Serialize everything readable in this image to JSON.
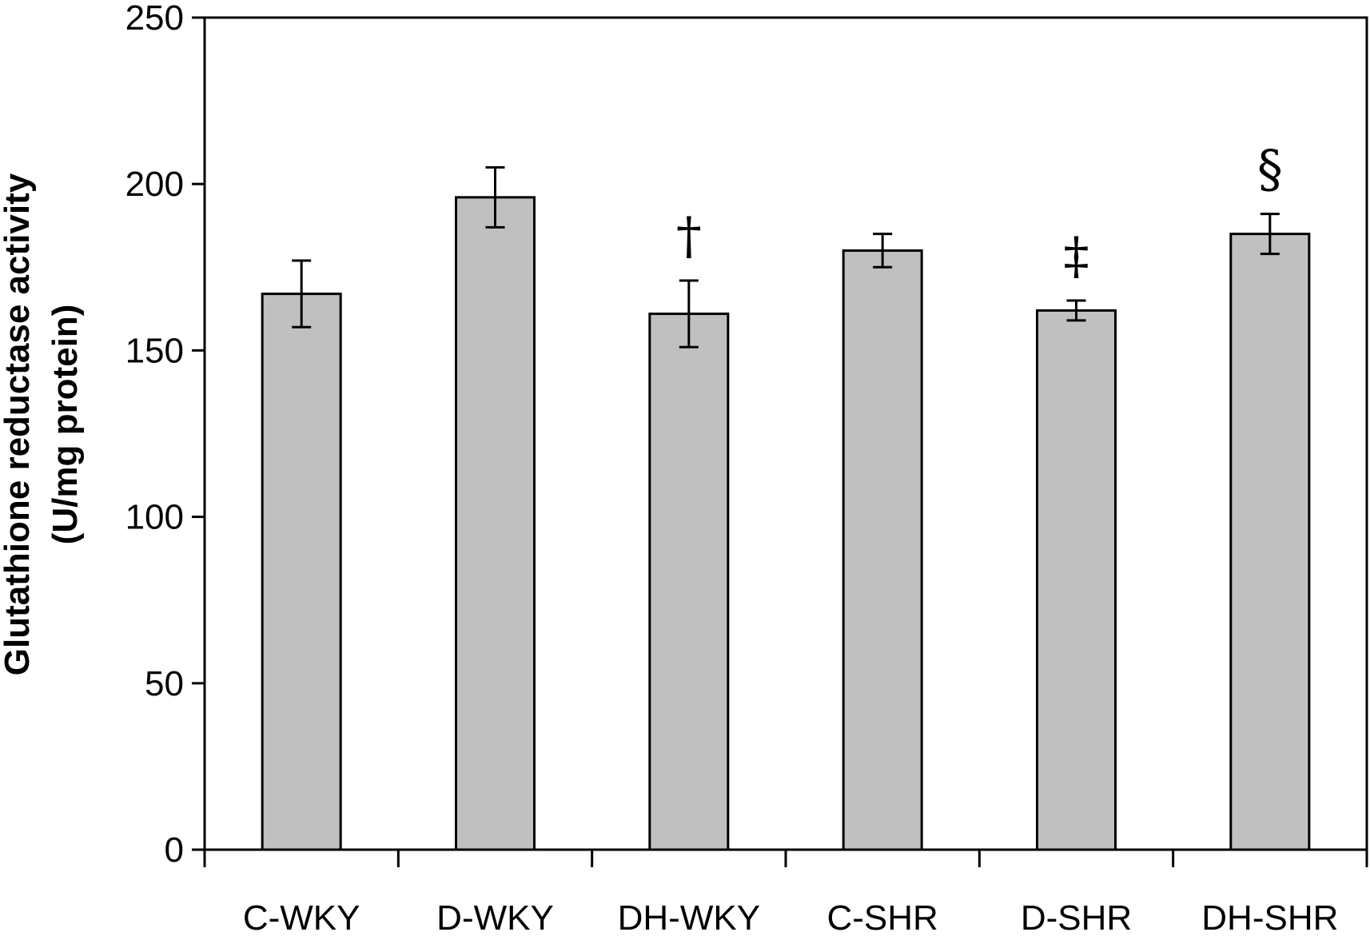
{
  "chart_data": {
    "type": "bar",
    "title": "",
    "xlabel": "",
    "ylabel_lines": [
      "Glutathione reductase activity",
      "(U/mg protein)"
    ],
    "categories": [
      "C-WKY",
      "D-WKY",
      "DH-WKY",
      "C-SHR",
      "D-SHR",
      "DH-SHR"
    ],
    "values": [
      167,
      196,
      161,
      180,
      162,
      185
    ],
    "errors": [
      10,
      9,
      10,
      5,
      3,
      6
    ],
    "annotations": [
      "",
      "",
      "†",
      "",
      "‡",
      "§"
    ],
    "ylim": [
      0,
      250
    ],
    "yticks": [
      0,
      50,
      100,
      150,
      200,
      250
    ],
    "grid": false,
    "bar_color": "#c0c0c0",
    "edge_color": "#000000"
  }
}
